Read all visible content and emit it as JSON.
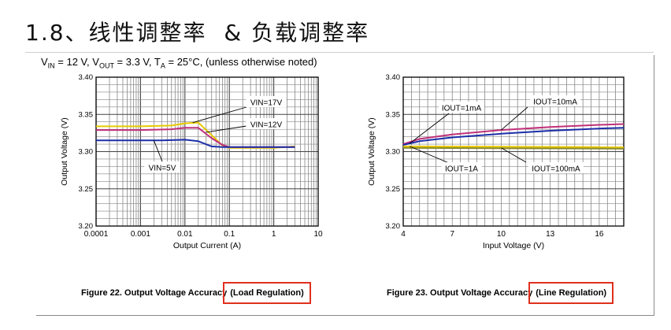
{
  "slide": {
    "title": "1.8、线性调整率  & 负载调整率",
    "conditions": {
      "vin": "V",
      "vin_sub": "IN",
      "vin_val": " = 12 V, ",
      "vout": "V",
      "vout_sub": "OUT",
      "vout_val": " = 3.3 V, ",
      "ta": "T",
      "ta_sub": "A",
      "ta_val": " = 25°C, (unless otherwise noted)"
    }
  },
  "captions": [
    {
      "prefix": "Figure 22. Output Voltage Accuracy ",
      "boxed": "(Load Regulation)"
    },
    {
      "prefix": "Figure 23. Output Voltage Accuracy ",
      "boxed": "(Line Regulation)"
    }
  ],
  "colors": {
    "yellow": "#e8c900",
    "magenta": "#c0307a",
    "blue": "#1c2fa8",
    "olive": "#8c8a2a",
    "highlight": "#e0301e"
  },
  "chart_data": [
    {
      "type": "line",
      "xscale": "log",
      "xlim": [
        0.0001,
        10
      ],
      "ylim": [
        3.2,
        3.4
      ],
      "xticks": [
        "0.0001",
        "0.001",
        "0.01",
        "0.1",
        "1",
        "10"
      ],
      "yticks": [
        "3.20",
        "3.25",
        "3.30",
        "3.35",
        "3.40"
      ],
      "xlabel": "Output Current (A)",
      "ylabel": "Output Voltage (V)",
      "grid": true,
      "series": [
        {
          "name": "VIN=17V",
          "color": "#e8c900",
          "x": [
            0.0001,
            0.001,
            0.005,
            0.01,
            0.02,
            0.04,
            0.07,
            0.1,
            1,
            3
          ],
          "y": [
            3.334,
            3.334,
            3.335,
            3.338,
            3.339,
            3.322,
            3.308,
            3.305,
            3.305,
            3.307
          ]
        },
        {
          "name": "VIN=12V",
          "color": "#c0307a",
          "x": [
            0.0001,
            0.001,
            0.005,
            0.01,
            0.02,
            0.04,
            0.07,
            0.1,
            1,
            3
          ],
          "y": [
            3.329,
            3.329,
            3.33,
            3.332,
            3.332,
            3.318,
            3.309,
            3.306,
            3.306,
            3.306
          ]
        },
        {
          "name": "VIN=5V",
          "color": "#1c2fa8",
          "x": [
            0.0001,
            0.001,
            0.003,
            0.01,
            0.02,
            0.04,
            0.07,
            0.1,
            1,
            3
          ],
          "y": [
            3.315,
            3.315,
            3.315,
            3.316,
            3.314,
            3.307,
            3.306,
            3.306,
            3.306,
            3.306
          ]
        }
      ],
      "annotations": [
        {
          "text": "VIN=17V",
          "series": 0
        },
        {
          "text": "VIN=12V",
          "series": 1
        },
        {
          "text": "VIN=5V",
          "series": 2
        }
      ]
    },
    {
      "type": "line",
      "xscale": "linear",
      "xlim": [
        4,
        17.5
      ],
      "ylim": [
        3.2,
        3.4
      ],
      "xticks": [
        "4",
        "7",
        "10",
        "13",
        "16"
      ],
      "yticks": [
        "3.20",
        "3.25",
        "3.30",
        "3.35",
        "3.40"
      ],
      "xlabel": "Input Voltage (V)",
      "ylabel": "Output Voltage (V)",
      "grid": true,
      "series": [
        {
          "name": "IOUT=1mA",
          "color": "#c0307a",
          "x": [
            4,
            5,
            7,
            10,
            13,
            16,
            17.5
          ],
          "y": [
            3.31,
            3.317,
            3.323,
            3.329,
            3.333,
            3.336,
            3.337
          ]
        },
        {
          "name": "IOUT=10mA",
          "color": "#1c2fa8",
          "x": [
            4,
            5,
            7,
            10,
            13,
            16,
            17.5
          ],
          "y": [
            3.309,
            3.314,
            3.319,
            3.324,
            3.328,
            3.331,
            3.332
          ]
        },
        {
          "name": "IOUT=1A",
          "color": "#e8c900",
          "x": [
            4,
            17.5
          ],
          "y": [
            3.307,
            3.306
          ]
        },
        {
          "name": "IOUT=100mA",
          "color": "#8c8a2a",
          "x": [
            4,
            17.5
          ],
          "y": [
            3.305,
            3.304
          ]
        }
      ],
      "annotations": [
        {
          "text": "IOUT=1mA",
          "series": 0
        },
        {
          "text": "IOUT=10mA",
          "series": 1
        },
        {
          "text": "IOUT=1A",
          "series": 2
        },
        {
          "text": "IOUT=100mA",
          "series": 3
        }
      ]
    }
  ]
}
